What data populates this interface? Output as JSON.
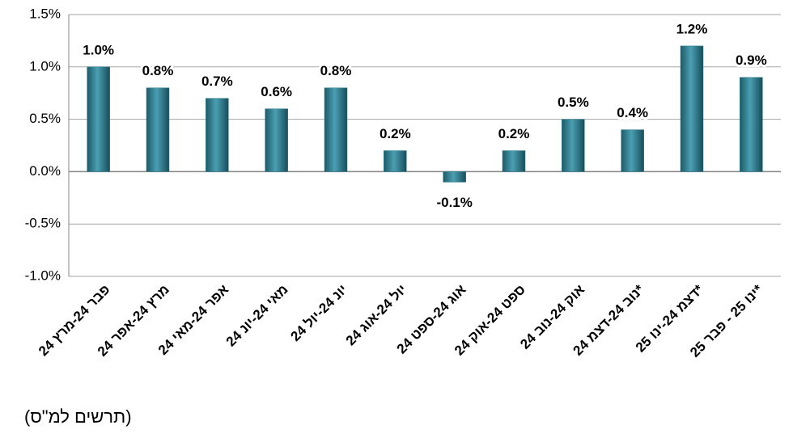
{
  "chart_data": {
    "type": "bar",
    "categories": [
      "פבר 24-מרץ 24",
      "מרץ 24-אפר 24",
      "אפר 24-מאי 24",
      "מאי 24-יונ 24",
      "יונ 24-יול 24",
      "יול 24-אוג 24",
      "אוג 24-ספט 24",
      "ספט 24-אוק 24",
      "אוק 24-נוב 24",
      "נוב 24-דצמ 24*",
      "דצמ 24-ינו 25*",
      "ינו 25 - פבר 25*"
    ],
    "values": [
      1.0,
      0.8,
      0.7,
      0.6,
      0.8,
      0.2,
      -0.1,
      0.2,
      0.5,
      0.4,
      1.2,
      0.9
    ],
    "value_labels": [
      "1.0%",
      "0.8%",
      "0.7%",
      "0.6%",
      "0.8%",
      "0.2%",
      "-0.1%",
      "0.2%",
      "0.5%",
      "0.4%",
      "1.2%",
      "0.9%"
    ],
    "color": "#2b7a8c",
    "ylim": [
      -1.0,
      1.5
    ],
    "yticks": [
      {
        "value": -1.0,
        "label": "-1.0%"
      },
      {
        "value": -0.5,
        "label": "-0.5%"
      },
      {
        "value": 0,
        "label": "0.0%"
      },
      {
        "value": 0.5,
        "label": "0.5%"
      },
      {
        "value": 1.0,
        "label": "1.0%"
      },
      {
        "value": 1.5,
        "label": "1.5%"
      }
    ],
    "grid": true,
    "footnote": "(תרשים למ\"ס)"
  }
}
